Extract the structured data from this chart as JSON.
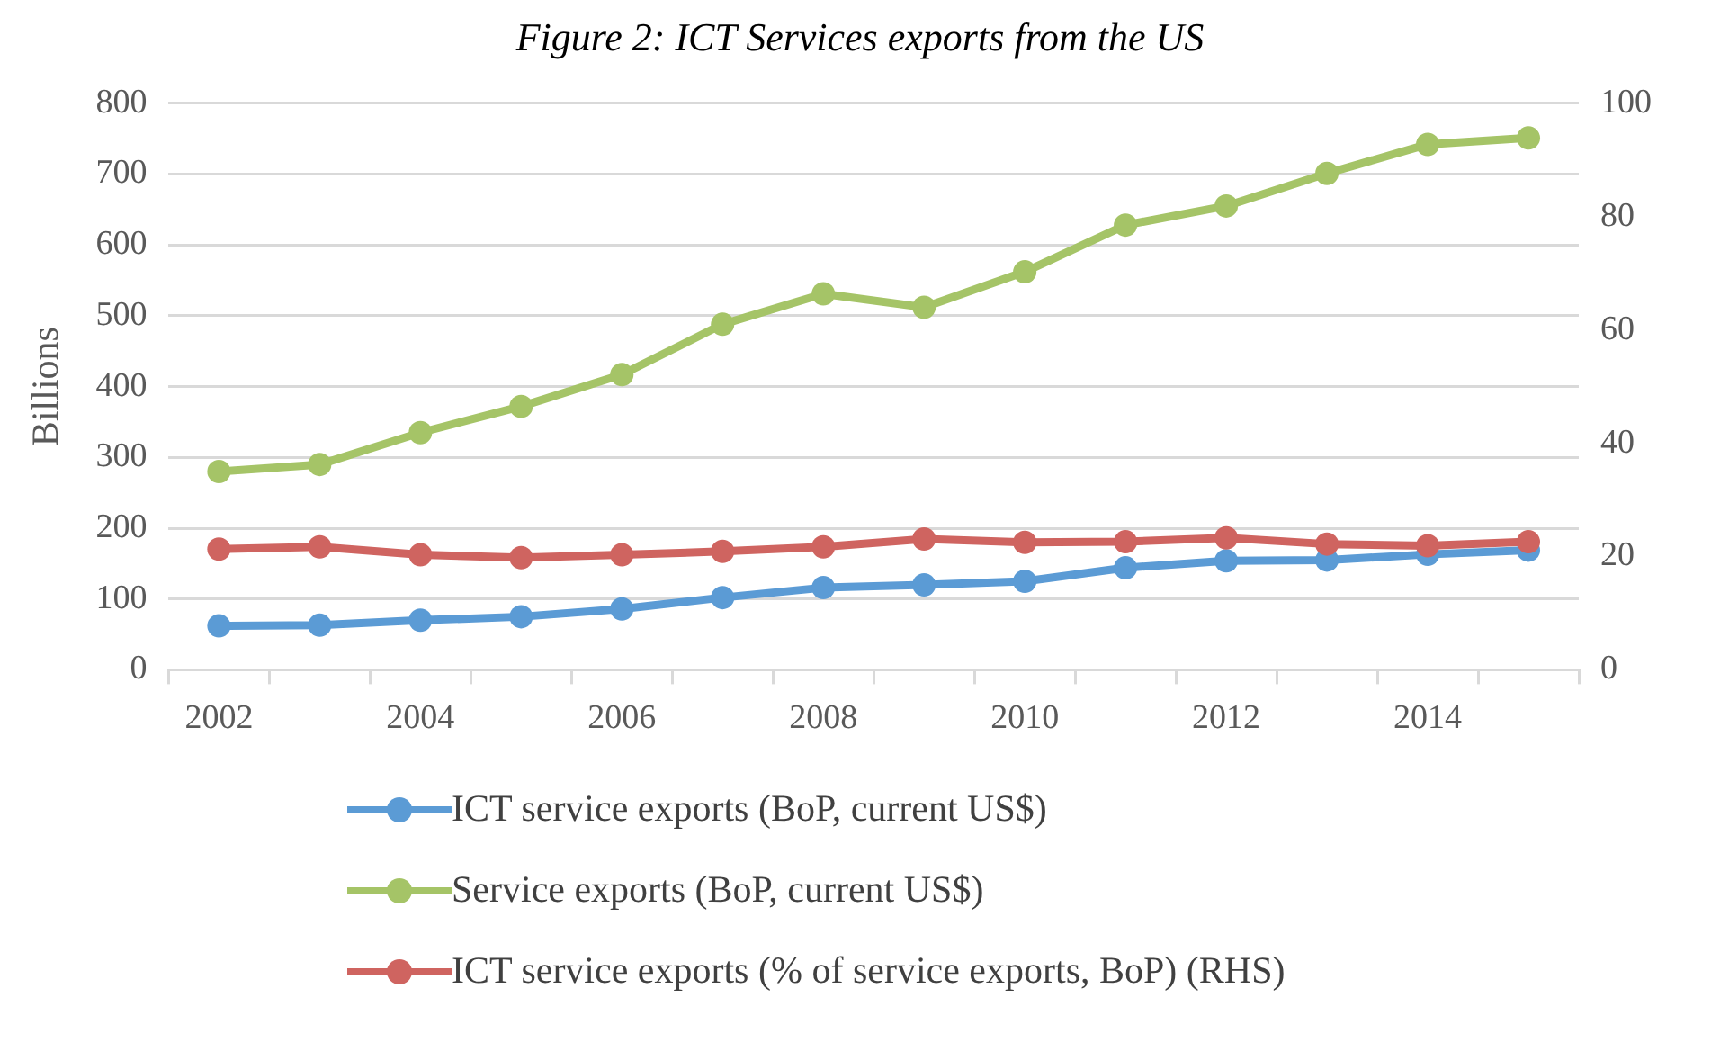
{
  "chart_data": {
    "type": "line",
    "title": "Figure 2: ICT Services exports from the US",
    "ylabel": "Billions",
    "categories": [
      "2002",
      null,
      "2004",
      null,
      "2006",
      null,
      "2008",
      null,
      "2010",
      null,
      "2012",
      null,
      "2014",
      null
    ],
    "series": [
      {
        "name": "ICT service exports (BoP, current US$)",
        "color": "#5b9bd5",
        "values": [
          62,
          63,
          70,
          75,
          86,
          102,
          116,
          120,
          125,
          144,
          154,
          155,
          163,
          169
        ]
      },
      {
        "name": "Service exports (BoP, current US$)",
        "color": "#a5c467",
        "values": [
          280,
          290,
          335,
          372,
          417,
          488,
          531,
          512,
          562,
          628,
          655,
          701,
          742,
          751
        ]
      },
      {
        "name": "ICT service exports (% of service exports, BoP) (RHS)",
        "color": "#cf6460",
        "axis": "y2",
        "values": [
          21.3,
          21.7,
          20.3,
          19.8,
          20.3,
          20.9,
          21.7,
          23.1,
          22.5,
          22.6,
          23.3,
          22.2,
          21.9,
          22.6
        ]
      }
    ],
    "ylim": [
      0,
      800
    ],
    "yticks": [
      0,
      100,
      200,
      300,
      400,
      500,
      600,
      700,
      800
    ],
    "y2lim": [
      0,
      100
    ],
    "y2ticks": [
      0,
      20,
      40,
      60,
      80,
      100
    ],
    "grid": "y",
    "legend": "bottom",
    "marker": "circle",
    "line_style": "solid"
  }
}
